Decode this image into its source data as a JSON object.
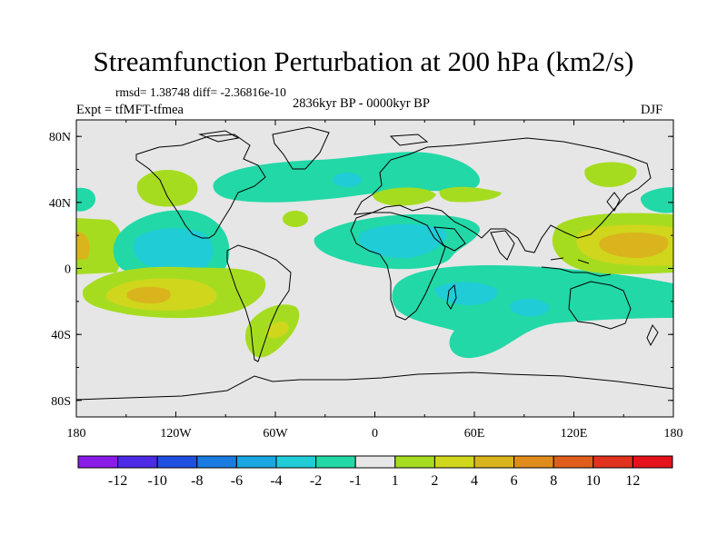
{
  "title": "Streamfunction Perturbation at 200 hPa (km2/s)",
  "stats": {
    "text": "rmsd= 1.38748 diff= -2.36816e-10"
  },
  "experiment": "Expt = tfMFT-tfmea",
  "period": "2836kyr BP - 0000kyr BP",
  "season": "DJF",
  "map": {
    "projection": "cylindrical-equidistant",
    "lon_range": [
      -180,
      180
    ],
    "lat_range": [
      -90,
      90
    ],
    "lat_ticks": [
      {
        "value": 80,
        "label": "80N"
      },
      {
        "value": 40,
        "label": "40N"
      },
      {
        "value": 0,
        "label": "0"
      },
      {
        "value": -40,
        "label": "40S"
      },
      {
        "value": -80,
        "label": "80S"
      }
    ],
    "lon_ticks": [
      {
        "value": -180,
        "label": "180"
      },
      {
        "value": -120,
        "label": "120W"
      },
      {
        "value": -60,
        "label": "60W"
      },
      {
        "value": 0,
        "label": "0"
      },
      {
        "value": 60,
        "label": "60E"
      },
      {
        "value": 120,
        "label": "120E"
      },
      {
        "value": 180,
        "label": "180"
      }
    ],
    "background_color": "#e6e6e6",
    "coastline_color": "#000000"
  },
  "colorbar": {
    "labels": [
      "-12",
      "-10",
      "-8",
      "-6",
      "-4",
      "-2",
      "-1",
      "1",
      "2",
      "4",
      "6",
      "8",
      "10",
      "12"
    ],
    "colors": [
      "#8a1ce8",
      "#4d2ae6",
      "#2050e0",
      "#1a7be0",
      "#1aa6e0",
      "#20ccd6",
      "#22d8a6",
      "#e6e6e6",
      "#a6dc20",
      "#cfd61c",
      "#dab41c",
      "#e08c1c",
      "#e05e1c",
      "#e0321c",
      "#e6121c"
    ]
  },
  "chart_data": {
    "type": "filled-contour-map",
    "variable": "streamfunction perturbation",
    "level": "200 hPa",
    "units": "km2/s",
    "contour_levels": [
      -12,
      -10,
      -8,
      -6,
      -4,
      -2,
      -1,
      1,
      2,
      4,
      6,
      8,
      10,
      12
    ],
    "features": [
      {
        "region": "central tropical Pacific (~120W, 5N)",
        "range": [
          -4,
          -2
        ]
      },
      {
        "region": "South Pacific (~130W, 20S)",
        "range": [
          4,
          6
        ]
      },
      {
        "region": "West Pacific (~150E-180, 10N)",
        "range": [
          4,
          6
        ]
      },
      {
        "region": "North Africa / Middle East (~20E-40E, 15N)",
        "range": [
          -4,
          -2
        ]
      },
      {
        "region": "Indian Ocean (~40E-90E, 20S)",
        "range": [
          -4,
          -2
        ]
      },
      {
        "region": "North Atlantic (~30W-30E, 45N)",
        "range": [
          -2,
          -1
        ]
      },
      {
        "region": "South Atlantic (~50W-30W, 30S)",
        "range": [
          1,
          2
        ]
      },
      {
        "region": "Central Pacific north (~150W-160W, 20N)",
        "range": [
          1,
          2
        ]
      }
    ]
  }
}
